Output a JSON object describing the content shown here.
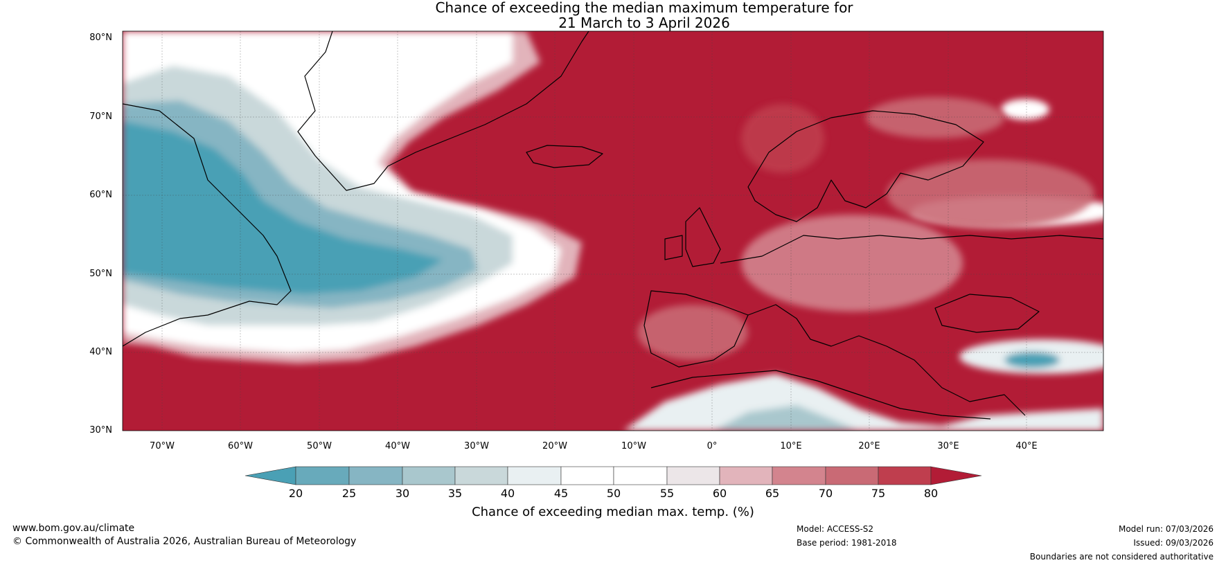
{
  "title": {
    "line1": "Chance of exceeding the median maximum temperature for",
    "line2": "21 March to 3 April 2026"
  },
  "map": {
    "type": "probability_map",
    "variable": "Chance of exceeding median max. temp. (%)",
    "region": "North Atlantic, Europe and Mediterranean",
    "lat_range": [
      30,
      80
    ],
    "lon_range": [
      -75,
      50
    ],
    "lat_labels": [
      "80°N",
      "70°N",
      "60°N",
      "50°N",
      "40°N",
      "30°N"
    ],
    "lon_labels": [
      "70°W",
      "60°W",
      "50°W",
      "40°W",
      "30°W",
      "20°W",
      "10°W",
      "0°",
      "10°E",
      "20°E",
      "30°E",
      "40°E"
    ]
  },
  "colorbar": {
    "ticks": [
      "20",
      "25",
      "30",
      "35",
      "40",
      "45",
      "50",
      "55",
      "60",
      "65",
      "70",
      "75",
      "80"
    ],
    "colors": {
      "below20": "#4aa0b5",
      "b20_25": "#68aabb",
      "b25_30": "#86b5c3",
      "b30_35": "#a9c7cd",
      "b35_40": "#c9d8da",
      "b40_45": "#e9f0f2",
      "b45_50": "#ffffff",
      "b50_55": "#ffffff",
      "b55_60": "#ece6e8",
      "b60_65": "#e2b4bb",
      "b65_70": "#d3848e",
      "b70_75": "#c96a75",
      "b75_80": "#bf3e4e",
      "above80": "#b21c36"
    },
    "label": "Chance of exceeding median max. temp. (%)"
  },
  "footer": {
    "url": "www.bom.gov.au/climate",
    "copyright": "© Commonwealth of Australia 2026, Australian Bureau of Meteorology",
    "model": "Model: ACCESS-S2",
    "base_period": "Base period: 1981-2018",
    "model_run": "Model run: 07/03/2026",
    "issued": "Issued: 09/03/2026",
    "disclaimer": "Boundaries are not considered authoritative"
  }
}
